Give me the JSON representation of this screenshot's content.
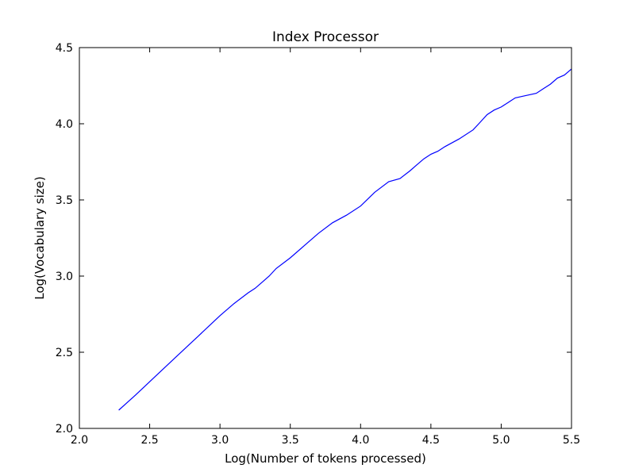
{
  "chart_data": {
    "type": "line",
    "title": "Index Processor",
    "xlabel": "Log(Number of tokens processed)",
    "ylabel": "Log(Vocabulary size)",
    "xlim": [
      2.0,
      5.5
    ],
    "ylim": [
      2.0,
      4.5
    ],
    "xticks": [
      "2.0",
      "2.5",
      "3.0",
      "3.5",
      "4.0",
      "4.5",
      "5.0",
      "5.5"
    ],
    "yticks": [
      "2.0",
      "2.5",
      "3.0",
      "3.5",
      "4.0",
      "4.5"
    ],
    "grid": false,
    "series": [
      {
        "color": "#0000ff",
        "x": [
          2.28,
          2.4,
          2.55,
          2.7,
          2.85,
          3.0,
          3.1,
          3.2,
          3.25,
          3.3,
          3.35,
          3.4,
          3.5,
          3.6,
          3.7,
          3.8,
          3.9,
          4.0,
          4.1,
          4.2,
          4.28,
          4.35,
          4.4,
          4.45,
          4.5,
          4.55,
          4.6,
          4.7,
          4.8,
          4.85,
          4.9,
          4.95,
          5.0,
          5.05,
          5.1,
          5.15,
          5.25,
          5.3,
          5.35,
          5.4,
          5.45,
          5.5
        ],
        "y": [
          2.12,
          2.22,
          2.35,
          2.48,
          2.61,
          2.74,
          2.82,
          2.89,
          2.92,
          2.96,
          3.0,
          3.05,
          3.12,
          3.2,
          3.28,
          3.35,
          3.4,
          3.46,
          3.55,
          3.62,
          3.64,
          3.69,
          3.73,
          3.77,
          3.8,
          3.82,
          3.85,
          3.9,
          3.96,
          4.01,
          4.06,
          4.09,
          4.11,
          4.14,
          4.17,
          4.18,
          4.2,
          4.23,
          4.26,
          4.3,
          4.32,
          4.36
        ]
      }
    ]
  }
}
